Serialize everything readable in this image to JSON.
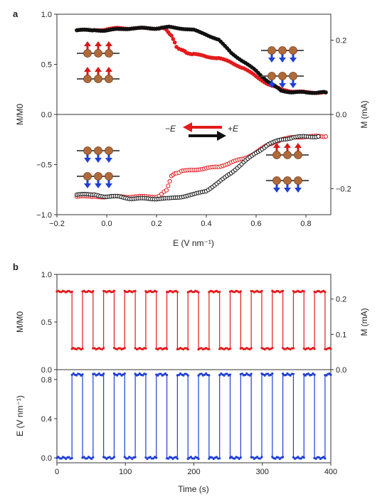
{
  "figure": {
    "panels": [
      "a",
      "b"
    ]
  },
  "chart_data": [
    {
      "panel": "a",
      "type": "scatter",
      "xlabel": "E (V nm⁻¹)",
      "ylabel_left": "M/M0",
      "ylabel_right": "M (mA)",
      "xlim": [
        -0.2,
        0.9
      ],
      "ylim": [
        -1.0,
        1.0
      ],
      "ylim_right": [
        -0.27,
        0.27
      ],
      "xticks": [
        "−0.2",
        "0.0",
        "0.2",
        "0.4",
        "0.6",
        "0.8"
      ],
      "yticks_left": [
        "−1.0",
        "−0.5",
        "0.0",
        "0.5",
        "1.0"
      ],
      "yticks_right": [
        "−0.2",
        "0.0",
        "0.2"
      ],
      "legend": [
        {
          "label": "−E",
          "color": "#e41a1c",
          "direction": "left"
        },
        {
          "label": "+E",
          "color": "#111111",
          "direction": "right"
        }
      ],
      "series": [
        {
          "key": "upper_red",
          "color": "#e41a1c",
          "marker": "filled",
          "x": [
            -0.12,
            -0.05,
            0.0,
            0.05,
            0.1,
            0.15,
            0.2,
            0.22,
            0.24,
            0.26,
            0.28,
            0.3,
            0.32,
            0.35,
            0.4,
            0.45,
            0.5,
            0.55,
            0.6,
            0.65,
            0.7,
            0.75,
            0.8,
            0.85,
            0.88
          ],
          "y": [
            0.84,
            0.84,
            0.85,
            0.86,
            0.86,
            0.86,
            0.86,
            0.86,
            0.85,
            0.78,
            0.68,
            0.64,
            0.62,
            0.6,
            0.58,
            0.56,
            0.52,
            0.46,
            0.38,
            0.3,
            0.25,
            0.23,
            0.22,
            0.22,
            0.22
          ]
        },
        {
          "key": "upper_black",
          "color": "#111111",
          "marker": "filled",
          "x": [
            -0.12,
            -0.05,
            0.0,
            0.05,
            0.1,
            0.15,
            0.2,
            0.25,
            0.3,
            0.35,
            0.4,
            0.45,
            0.5,
            0.55,
            0.6,
            0.65,
            0.7,
            0.75,
            0.8,
            0.85,
            0.88
          ],
          "y": [
            0.84,
            0.84,
            0.84,
            0.85,
            0.86,
            0.86,
            0.86,
            0.87,
            0.86,
            0.84,
            0.8,
            0.74,
            0.62,
            0.52,
            0.44,
            0.32,
            0.24,
            0.22,
            0.22,
            0.22,
            0.22
          ]
        },
        {
          "key": "lower_red",
          "color": "#e41a1c",
          "marker": "open",
          "x": [
            -0.12,
            -0.05,
            0.0,
            0.05,
            0.1,
            0.15,
            0.2,
            0.22,
            0.24,
            0.26,
            0.28,
            0.3,
            0.35,
            0.4,
            0.45,
            0.5,
            0.55,
            0.6,
            0.65,
            0.7,
            0.75,
            0.8,
            0.85,
            0.88
          ],
          "y": [
            -0.82,
            -0.82,
            -0.82,
            -0.82,
            -0.82,
            -0.82,
            -0.82,
            -0.8,
            -0.75,
            -0.62,
            -0.58,
            -0.57,
            -0.55,
            -0.54,
            -0.52,
            -0.48,
            -0.44,
            -0.38,
            -0.3,
            -0.25,
            -0.23,
            -0.22,
            -0.22,
            -0.22
          ]
        },
        {
          "key": "lower_black",
          "color": "#111111",
          "marker": "open",
          "x": [
            -0.12,
            -0.05,
            0.0,
            0.05,
            0.1,
            0.15,
            0.2,
            0.25,
            0.3,
            0.35,
            0.4,
            0.45,
            0.5,
            0.55,
            0.6,
            0.65,
            0.7,
            0.75,
            0.8,
            0.85
          ],
          "y": [
            -0.8,
            -0.8,
            -0.82,
            -0.82,
            -0.84,
            -0.84,
            -0.84,
            -0.84,
            -0.82,
            -0.8,
            -0.76,
            -0.68,
            -0.58,
            -0.48,
            -0.38,
            -0.3,
            -0.25,
            -0.23,
            -0.22,
            -0.22
          ]
        }
      ]
    },
    {
      "panel": "b-top",
      "type": "line",
      "xlabel": "",
      "ylabel_left": "M/M0",
      "ylabel_right": "M (mA)",
      "xlim": [
        0,
        400
      ],
      "ylim": [
        0.0,
        1.0
      ],
      "ylim_right": [
        0.0,
        0.27
      ],
      "yticks_left": [
        "0.0",
        "0.5",
        "1.0"
      ],
      "yticks_right": [
        "0.0",
        "0.1",
        "0.2"
      ],
      "series": [
        {
          "key": "b_M",
          "color": "#e41a1c",
          "high": 0.82,
          "low": 0.22,
          "period": 30.8,
          "duty": 0.5,
          "x_start": 0,
          "x_end": 400,
          "start_high_until": 22
        }
      ]
    },
    {
      "panel": "b-bottom",
      "type": "line",
      "xlabel": "Time (s)",
      "ylabel_left": "E (V nm⁻¹)",
      "xlim": [
        0,
        400
      ],
      "ylim": [
        -0.05,
        0.9
      ],
      "xticks": [
        "0",
        "100",
        "200",
        "300",
        "400"
      ],
      "yticks_left": [
        "0.0",
        "0.4",
        "0.8"
      ],
      "series": [
        {
          "key": "b_E",
          "color": "#1f3fd6",
          "high": 0.85,
          "low": 0.0,
          "period": 30.8,
          "duty": 0.5,
          "x_start": 0,
          "x_end": 400,
          "start_low_until": 22
        }
      ]
    }
  ]
}
